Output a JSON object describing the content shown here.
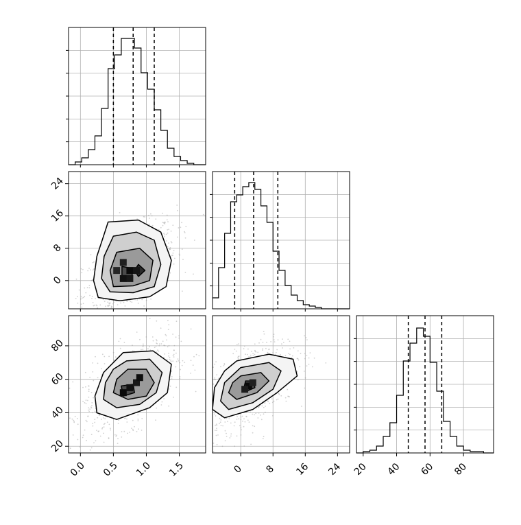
{
  "chart_data": {
    "type": "corner",
    "background": "#ffffff",
    "line_color": "#000000",
    "grid_color": "#b0b0b0",
    "grid": true,
    "params": [
      {
        "range": [
          -0.18,
          1.9
        ],
        "ticks": [
          0.0,
          0.5,
          1.0,
          1.5
        ],
        "tick_labels": [
          "0.0",
          "0.5",
          "1.0",
          "1.5"
        ],
        "quantiles": [
          0.5,
          0.8,
          1.12
        ]
      },
      {
        "range": [
          -7,
          27
        ],
        "ticks": [
          0,
          8,
          16,
          24
        ],
        "tick_labels": [
          "0",
          "8",
          "16",
          "24"
        ],
        "quantiles": [
          -1.5,
          3.2,
          9.2
        ]
      },
      {
        "range": [
          16,
          98
        ],
        "ticks": [
          20,
          40,
          60,
          80
        ],
        "tick_labels": [
          "20",
          "40",
          "60",
          "80"
        ],
        "quantiles": [
          47,
          57,
          67
        ]
      }
    ],
    "histograms": [
      {
        "param": 0,
        "bin_edges": [
          -0.18,
          -0.08,
          0.02,
          0.12,
          0.22,
          0.32,
          0.42,
          0.52,
          0.62,
          0.72,
          0.82,
          0.92,
          1.02,
          1.12,
          1.22,
          1.32,
          1.42,
          1.52,
          1.62,
          1.72,
          1.82,
          1.9
        ],
        "counts": [
          0,
          0.02,
          0.05,
          0.11,
          0.21,
          0.41,
          0.7,
          0.8,
          0.92,
          0.92,
          0.85,
          0.67,
          0.55,
          0.4,
          0.25,
          0.12,
          0.06,
          0.03,
          0.01,
          0,
          0
        ]
      },
      {
        "param": 1,
        "bin_edges": [
          -7,
          -5.5,
          -4,
          -2.5,
          -1,
          0.5,
          2,
          3.5,
          5,
          6.5,
          8,
          9.5,
          11,
          12.5,
          14,
          15.5,
          17,
          18.5,
          20,
          21.5,
          23,
          24.5,
          27
        ],
        "counts": [
          0.08,
          0.3,
          0.55,
          0.78,
          0.83,
          0.89,
          0.92,
          0.87,
          0.75,
          0.63,
          0.42,
          0.28,
          0.17,
          0.1,
          0.06,
          0.03,
          0.02,
          0.01,
          0,
          0,
          0,
          0
        ]
      },
      {
        "param": 2,
        "bin_edges": [
          16,
          20,
          24,
          28,
          32,
          36,
          40,
          44,
          48,
          52,
          56,
          60,
          64,
          68,
          72,
          76,
          80,
          84,
          88,
          92,
          96,
          98
        ],
        "counts": [
          0,
          0.01,
          0.02,
          0.05,
          0.12,
          0.22,
          0.42,
          0.67,
          0.8,
          0.91,
          0.85,
          0.66,
          0.45,
          0.23,
          0.12,
          0.05,
          0.02,
          0.01,
          0.01,
          0,
          0
        ]
      }
    ],
    "pairs": [
      {
        "x": 0,
        "y": 1,
        "center": [
          0.75,
          2.5
        ],
        "contours": [
          [
            [
              0.42,
              14.5
            ],
            [
              0.88,
              15
            ],
            [
              1.22,
              12
            ],
            [
              1.38,
              5
            ],
            [
              1.3,
              -1.5
            ],
            [
              1.05,
              -4
            ],
            [
              0.6,
              -5
            ],
            [
              0.27,
              -4.2
            ],
            [
              0.2,
              0
            ],
            [
              0.25,
              6
            ],
            [
              0.35,
              11
            ]
          ],
          [
            [
              0.5,
              11
            ],
            [
              0.85,
              12
            ],
            [
              1.12,
              10
            ],
            [
              1.22,
              4
            ],
            [
              1.12,
              -1.5
            ],
            [
              0.8,
              -3
            ],
            [
              0.45,
              -2.8
            ],
            [
              0.32,
              0.5
            ],
            [
              0.36,
              6
            ]
          ],
          [
            [
              0.55,
              7
            ],
            [
              0.9,
              8
            ],
            [
              1.1,
              5
            ],
            [
              1.05,
              0
            ],
            [
              0.8,
              -1.3
            ],
            [
              0.5,
              -1.5
            ],
            [
              0.45,
              2.5
            ]
          ],
          [
            [
              0.63,
              3.5
            ],
            [
              0.8,
              3
            ],
            [
              0.78,
              1
            ],
            [
              0.63,
              1.2
            ]
          ],
          [
            [
              0.88,
              4
            ],
            [
              0.98,
              2.5
            ],
            [
              0.88,
              1
            ],
            [
              0.82,
              2.5
            ]
          ]
        ],
        "density_cells": [
          {
            "x": 0.65,
            "y": 0.5,
            "level": 0.9
          },
          {
            "x": 0.75,
            "y": 2.5,
            "level": 1.0
          },
          {
            "x": 0.65,
            "y": 4.5,
            "level": 0.7
          },
          {
            "x": 0.85,
            "y": 2.5,
            "level": 0.85
          },
          {
            "x": 0.55,
            "y": 2.5,
            "level": 0.6
          },
          {
            "x": 0.75,
            "y": 0.5,
            "level": 0.8
          }
        ]
      },
      {
        "x": 0,
        "y": 2,
        "center": [
          0.75,
          56
        ],
        "contours": [
          [
            [
              0.65,
              76
            ],
            [
              1.1,
              77
            ],
            [
              1.38,
              69
            ],
            [
              1.32,
              52
            ],
            [
              1.05,
              43
            ],
            [
              0.55,
              36
            ],
            [
              0.25,
              40
            ],
            [
              0.22,
              50
            ],
            [
              0.35,
              64
            ]
          ],
          [
            [
              0.7,
              71
            ],
            [
              1.05,
              72
            ],
            [
              1.24,
              64
            ],
            [
              1.15,
              52
            ],
            [
              0.9,
              45
            ],
            [
              0.55,
              43
            ],
            [
              0.35,
              48
            ],
            [
              0.38,
              58
            ],
            [
              0.5,
              66
            ]
          ],
          [
            [
              0.72,
              66
            ],
            [
              1.0,
              66
            ],
            [
              1.12,
              58
            ],
            [
              1.0,
              50
            ],
            [
              0.72,
              48
            ],
            [
              0.5,
              52
            ],
            [
              0.55,
              60
            ]
          ],
          [
            [
              0.62,
              56
            ],
            [
              0.8,
              57
            ],
            [
              0.82,
              52
            ],
            [
              0.65,
              50
            ]
          ]
        ],
        "density_cells": [
          {
            "x": 0.65,
            "y": 52,
            "level": 1.0
          },
          {
            "x": 0.75,
            "y": 55,
            "level": 0.9
          },
          {
            "x": 0.85,
            "y": 58,
            "level": 0.8
          },
          {
            "x": 0.9,
            "y": 61,
            "level": 0.95
          }
        ]
      },
      {
        "x": 1,
        "y": 2,
        "center": [
          2,
          56
        ],
        "contours": [
          [
            [
              -1,
              71
            ],
            [
              7,
              75
            ],
            [
              13,
              72
            ],
            [
              14,
              62
            ],
            [
              9,
              52
            ],
            [
              3,
              42
            ],
            [
              -4,
              37
            ],
            [
              -7,
              42
            ],
            [
              -6.5,
              55
            ],
            [
              -4,
              65
            ]
          ],
          [
            [
              0,
              67
            ],
            [
              7,
              70
            ],
            [
              10,
              65
            ],
            [
              8,
              54
            ],
            [
              3,
              46
            ],
            [
              -3,
              42
            ],
            [
              -5,
              47
            ],
            [
              -4,
              58
            ]
          ],
          [
            [
              0,
              62
            ],
            [
              5,
              64
            ],
            [
              7,
              59
            ],
            [
              4,
              52
            ],
            [
              -1,
              48
            ],
            [
              -3,
              52
            ],
            [
              -2,
              58
            ]
          ],
          [
            [
              1.2,
              59
            ],
            [
              3.2,
              59
            ],
            [
              3.5,
              55
            ],
            [
              1.5,
              53
            ],
            [
              0.8,
              55
            ]
          ]
        ],
        "density_cells": [
          {
            "x": 2,
            "y": 56,
            "level": 1.0
          },
          {
            "x": 1,
            "y": 54,
            "level": 0.75
          },
          {
            "x": 3,
            "y": 58,
            "level": 0.7
          }
        ]
      }
    ]
  }
}
